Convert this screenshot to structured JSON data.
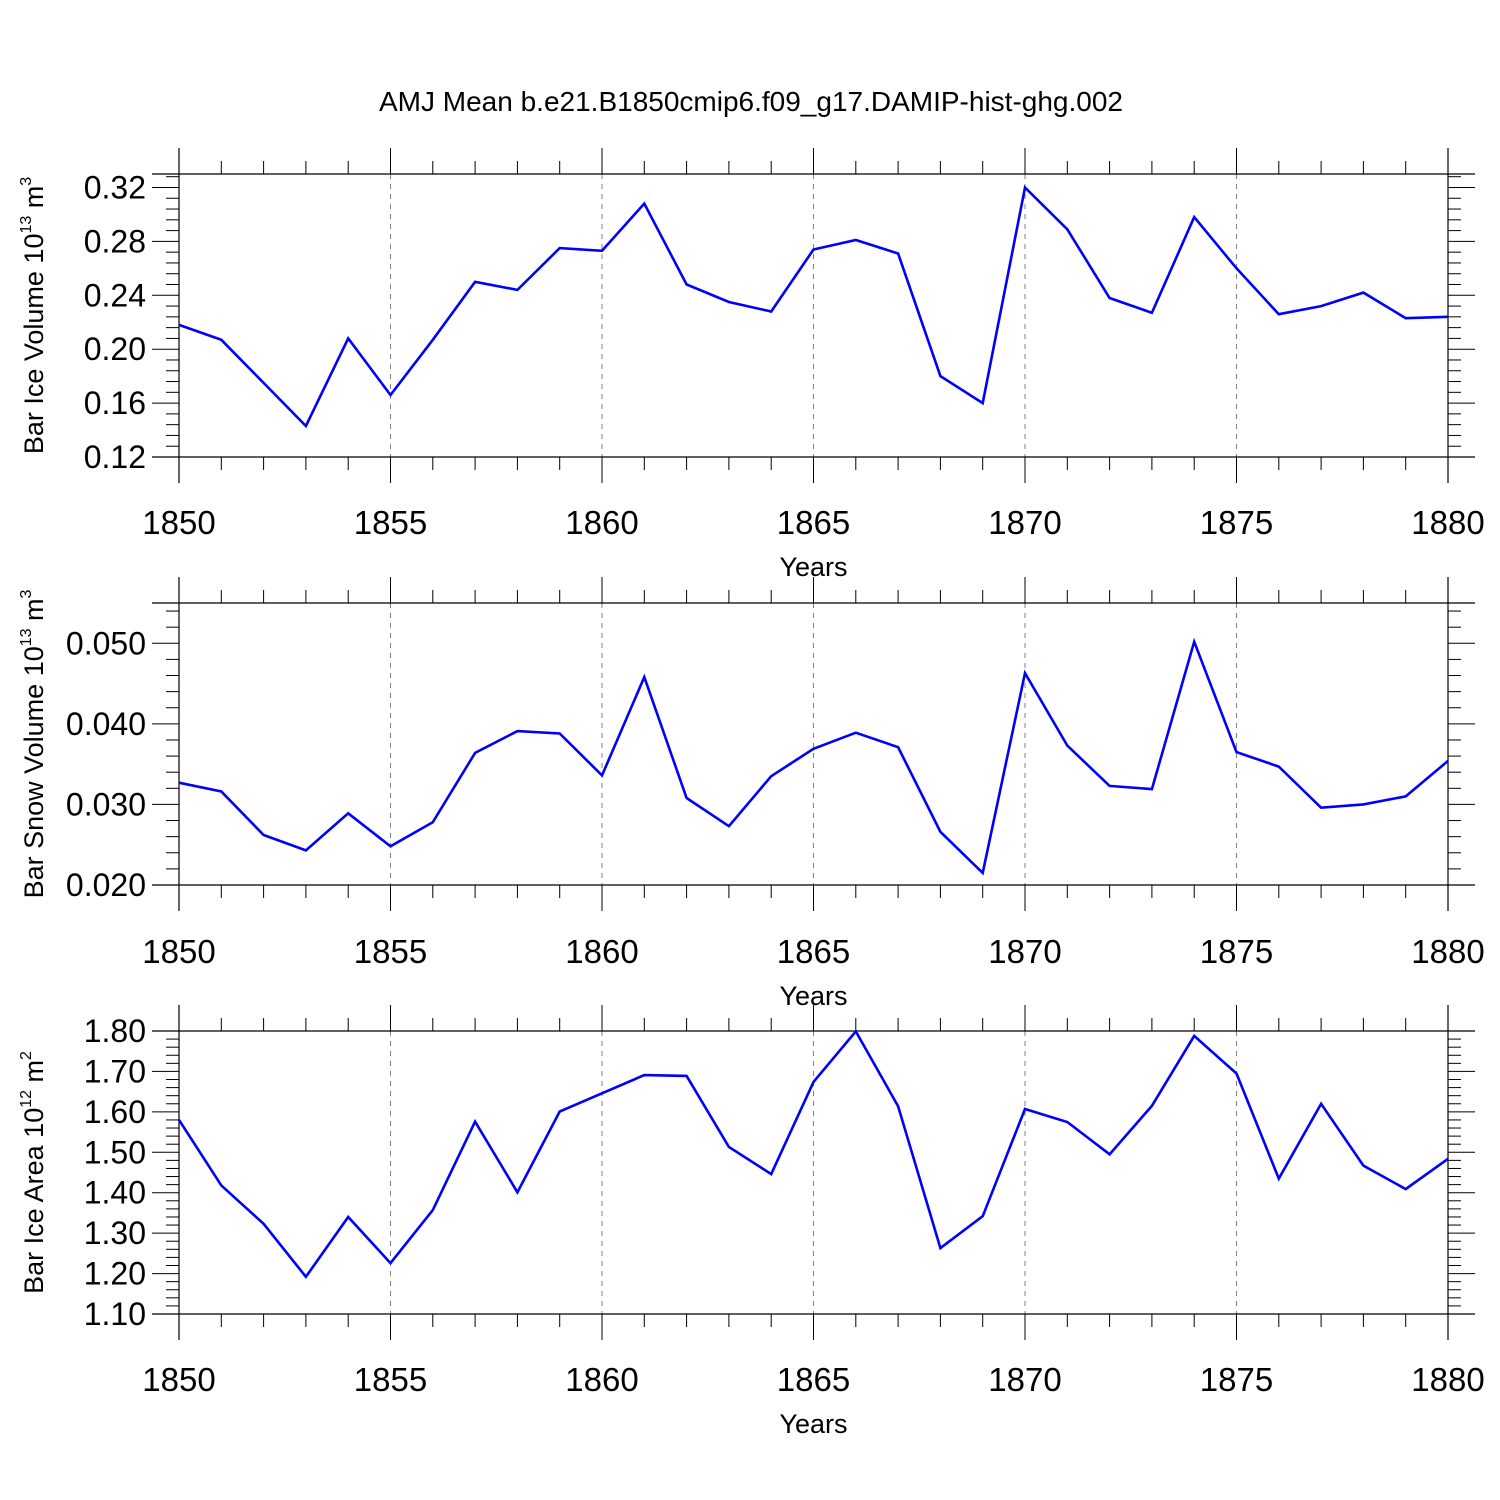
{
  "colors": {
    "line": "#0000ff",
    "axis": "#000000",
    "grid": "#808080"
  },
  "chart_data": {
    "title": "AMJ Mean b.e21.B1850cmip6.f09_g17.DAMIP-hist-ghg.002",
    "panels": [
      {
        "type": "line",
        "series_name": "Bar Ice Volume",
        "ylabel": {
          "base": "Bar Ice Volume 10",
          "exp1": "13",
          "unit": " m",
          "exp2": "3"
        },
        "xlabel": "Years",
        "xlim": [
          1850,
          1880
        ],
        "ylim": [
          0.12,
          0.33
        ],
        "yticks": [
          0.12,
          0.16,
          0.2,
          0.24,
          0.28,
          0.32
        ],
        "ytick_labels": [
          "0.12",
          "0.16",
          "0.20",
          "0.24",
          "0.28",
          "0.32"
        ],
        "xticks": [
          1850,
          1855,
          1860,
          1865,
          1870,
          1875,
          1880
        ],
        "xtick_labels": [
          "1850",
          "1855",
          "1860",
          "1865",
          "1870",
          "1875",
          "1880"
        ],
        "x": [
          1850,
          1851,
          1852,
          1853,
          1854,
          1855,
          1856,
          1857,
          1858,
          1859,
          1860,
          1861,
          1862,
          1863,
          1864,
          1865,
          1866,
          1867,
          1868,
          1869,
          1870,
          1871,
          1872,
          1873,
          1874,
          1875,
          1876,
          1877,
          1878,
          1879,
          1880
        ],
        "y": [
          0.218,
          0.207,
          0.175,
          0.143,
          0.208,
          0.166,
          0.207,
          0.25,
          0.244,
          0.275,
          0.273,
          0.308,
          0.248,
          0.235,
          0.228,
          0.274,
          0.281,
          0.271,
          0.18,
          0.16,
          0.32,
          0.289,
          0.238,
          0.227,
          0.298,
          0.26,
          0.226,
          0.232,
          0.242,
          0.223,
          0.224
        ]
      },
      {
        "type": "line",
        "series_name": "Bar Snow Volume",
        "ylabel": {
          "base": "Bar Snow Volume 10",
          "exp1": "13",
          "unit": " m",
          "exp2": "3"
        },
        "xlabel": "Years",
        "xlim": [
          1850,
          1880
        ],
        "ylim": [
          0.02,
          0.055
        ],
        "yticks": [
          0.02,
          0.03,
          0.04,
          0.05
        ],
        "ytick_labels": [
          "0.020",
          "0.030",
          "0.040",
          "0.050"
        ],
        "xticks": [
          1850,
          1855,
          1860,
          1865,
          1870,
          1875,
          1880
        ],
        "xtick_labels": [
          "1850",
          "1855",
          "1860",
          "1865",
          "1870",
          "1875",
          "1880"
        ],
        "x": [
          1850,
          1851,
          1852,
          1853,
          1854,
          1855,
          1856,
          1857,
          1858,
          1859,
          1860,
          1861,
          1862,
          1863,
          1864,
          1865,
          1866,
          1867,
          1868,
          1869,
          1870,
          1871,
          1872,
          1873,
          1874,
          1875,
          1876,
          1877,
          1878,
          1879,
          1880
        ],
        "y": [
          0.0327,
          0.0316,
          0.0262,
          0.0243,
          0.0289,
          0.0248,
          0.0278,
          0.0364,
          0.0391,
          0.0388,
          0.0336,
          0.0458,
          0.0308,
          0.0273,
          0.0335,
          0.0369,
          0.0389,
          0.0371,
          0.0266,
          0.0215,
          0.0463,
          0.0373,
          0.0323,
          0.0319,
          0.0502,
          0.0365,
          0.0347,
          0.0296,
          0.03,
          0.031,
          0.0354
        ]
      },
      {
        "type": "line",
        "series_name": "Bar Ice Area",
        "ylabel": {
          "base": "Bar Ice Area 10",
          "exp1": "12",
          "unit": " m",
          "exp2": "2"
        },
        "xlabel": "Years",
        "xlim": [
          1850,
          1880
        ],
        "ylim": [
          1.1,
          1.8
        ],
        "yticks": [
          1.1,
          1.2,
          1.3,
          1.4,
          1.5,
          1.6,
          1.7,
          1.8
        ],
        "ytick_labels": [
          "1.10",
          "1.20",
          "1.30",
          "1.40",
          "1.50",
          "1.60",
          "1.70",
          "1.80"
        ],
        "xticks": [
          1850,
          1855,
          1860,
          1865,
          1870,
          1875,
          1880
        ],
        "xtick_labels": [
          "1850",
          "1855",
          "1860",
          "1865",
          "1870",
          "1875",
          "1880"
        ],
        "x": [
          1850,
          1851,
          1852,
          1853,
          1854,
          1855,
          1856,
          1857,
          1858,
          1859,
          1860,
          1861,
          1862,
          1863,
          1864,
          1865,
          1866,
          1867,
          1868,
          1869,
          1870,
          1871,
          1872,
          1873,
          1874,
          1875,
          1876,
          1877,
          1878,
          1879,
          1880
        ],
        "y": [
          1.58,
          1.418,
          1.323,
          1.192,
          1.34,
          1.226,
          1.357,
          1.576,
          1.401,
          1.601,
          1.646,
          1.691,
          1.689,
          1.513,
          1.446,
          1.674,
          1.799,
          1.614,
          1.263,
          1.342,
          1.607,
          1.575,
          1.495,
          1.615,
          1.788,
          1.695,
          1.435,
          1.62,
          1.467,
          1.409,
          1.484
        ]
      }
    ]
  }
}
